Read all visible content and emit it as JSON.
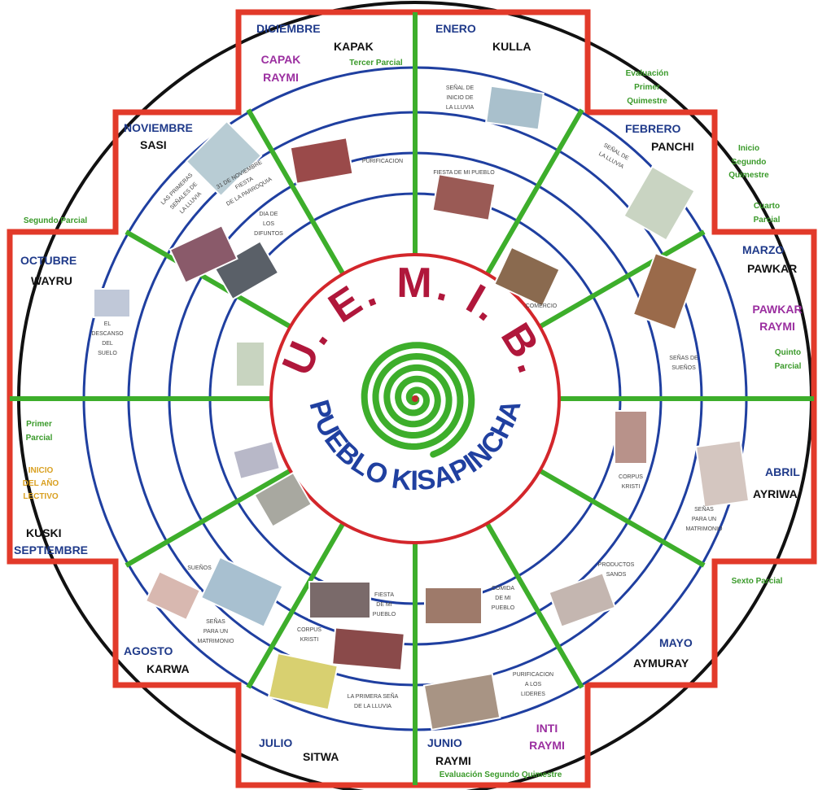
{
  "center": {
    "title": "U. E. M. I. B.",
    "subtitle": "PUEBLO KISAPINCHA"
  },
  "months": [
    {
      "name": "DICIEMBRE",
      "kichwa": "KAPAK"
    },
    {
      "name": "ENERO",
      "kichwa": "KULLA"
    },
    {
      "name": "FEBRERO",
      "kichwa": "PANCHI"
    },
    {
      "name": "MARZO",
      "kichwa": "PAWKAR"
    },
    {
      "name": "ABRIL",
      "kichwa": "AYRIWA"
    },
    {
      "name": "MAYO",
      "kichwa": "AYMURAY"
    },
    {
      "name": "JUNIO",
      "kichwa": "RAYMI"
    },
    {
      "name": "JULIO",
      "kichwa": "SITWA"
    },
    {
      "name": "AGOSTO",
      "kichwa": "KARWA"
    },
    {
      "name": "SEPTIEMBRE",
      "kichwa": "KUSKI"
    },
    {
      "name": "OCTUBRE",
      "kichwa": "WAYRU"
    },
    {
      "name": "NOVIEMBRE",
      "kichwa": "SASI"
    }
  ],
  "festivals": [
    [
      "CAPAK",
      "RAYMI"
    ],
    [
      "PAWKAR",
      "RAYMI"
    ],
    [
      "INTI",
      "RAYMI"
    ]
  ],
  "periods": [
    [
      "Tercer Parcial"
    ],
    [
      "Evaluación",
      "Primer",
      "Quimestre"
    ],
    [
      "Inicio",
      "Segundo",
      "Quimestre"
    ],
    [
      "Cuarto",
      "Parcial"
    ],
    [
      "Quinto",
      "Parcial"
    ],
    [
      "Sexto Parcial"
    ],
    [
      "Evaluación Segundo Quimestre"
    ],
    [
      "Primer",
      "Parcial"
    ],
    [
      "Segundo Parcial"
    ]
  ],
  "school_start": [
    "INICIO",
    "DEL AÑO",
    "LECTIVO"
  ],
  "signs": [
    [
      "SEÑAL DE",
      "INICIO DE",
      "LA LLUVIA"
    ],
    [
      "SEÑAL DE",
      "LA LLUVIA"
    ],
    [
      "FIESTA DE MI PUEBLO"
    ],
    [
      "COMERCIO"
    ],
    [
      "SEÑAS DE",
      "SUEÑOS"
    ],
    [
      "CORPUS",
      "KRISTI"
    ],
    [
      "SEÑAS",
      "PARA UN",
      "MATRIMONIO"
    ],
    [
      "PRODUCTOS",
      "SANOS"
    ],
    [
      "COMIDA",
      "DE MI",
      "PUEBLO"
    ],
    [
      "PURIFICACION",
      "A LOS",
      "LIDERES"
    ],
    [
      "LA PRIMERA SEÑA",
      "DE LA LLUVIA"
    ],
    [
      "CORPUS",
      "KRISTI"
    ],
    [
      "FIESTA",
      "DE MI",
      "PUEBLO"
    ],
    [
      "SUEÑOS"
    ],
    [
      "SEÑAS",
      "PARA UN",
      "MATRIMONIO"
    ],
    [
      "EL",
      "DESCANSO",
      "DEL",
      "SUELO"
    ],
    [
      "DIA DE",
      "LOS",
      "DIFUNTOS"
    ],
    [
      "31 DE NOVIEMBRE",
      "FIESTA",
      "DE LA PARROQUIA"
    ],
    [
      "LAS PRIMERAS",
      "SEÑALES DE",
      "LA LLUVIA"
    ],
    [
      "PURIFICACION"
    ]
  ]
}
